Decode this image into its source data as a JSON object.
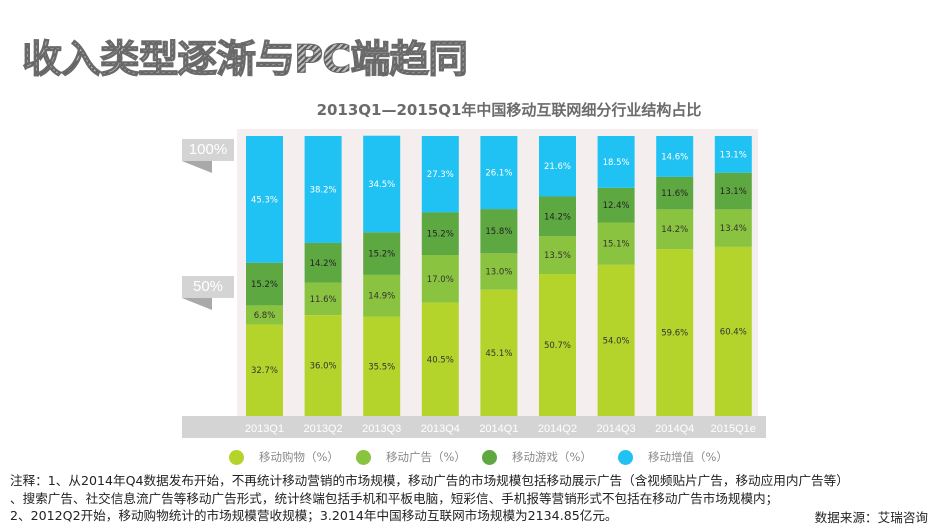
{
  "slide": {
    "title": "收入类型逐渐与PC端趋同"
  },
  "y_labels": [
    "100%",
    "50%"
  ],
  "legend": [
    {
      "label": "移动购物（%）",
      "color": "#b5d42b"
    },
    {
      "label": "移动广告（%）",
      "color": "#8ac33f"
    },
    {
      "label": "移动游戏（%）",
      "color": "#5ea842"
    },
    {
      "label": "移动增值（%）",
      "color": "#1fc2f2"
    }
  ],
  "notes": {
    "line1": "注释：1、从2014年Q4数据发布开始，不再统计移动营销的市场规模，移动广告的市场规模包括移动展示广告（含视频贴片广告，移动应用内广告等）",
    "line2": "、搜索广告、社交信息流广告等移动广告形式，统计终端包括手机和平板电脑，短彩信、手机报等营销形式不包括在移动广告市场规模内；",
    "line3": "2、2012Q2开始，移动购物统计的市场规模营收规模；3.2014年中国移动互联网市场规模为2134.85亿元。",
    "source": "数据来源：艾瑞咨询"
  },
  "chart_data": {
    "type": "bar",
    "stacked": true,
    "title": "2013Q1—2015Q1年中国移动互联网细分行业结构占比",
    "xlabel": "",
    "ylabel": "",
    "ylim": [
      0,
      100
    ],
    "y_ticks": [
      "50%",
      "100%"
    ],
    "legend_position": "bottom",
    "categories": [
      "2013Q1",
      "2013Q2",
      "2013Q3",
      "2013Q4",
      "2014Q1",
      "2014Q2",
      "2014Q3",
      "2014Q4",
      "2015Q1e"
    ],
    "series": [
      {
        "name": "移动购物（%）",
        "color": "#b5d42b",
        "label_color": "#333333",
        "values": [
          32.7,
          36.0,
          35.5,
          40.5,
          45.1,
          50.7,
          54.0,
          59.6,
          60.4
        ]
      },
      {
        "name": "移动广告（%）",
        "color": "#8ac33f",
        "label_color": "#333333",
        "values": [
          6.8,
          11.6,
          14.9,
          17.0,
          13.0,
          13.5,
          15.1,
          14.2,
          13.4
        ]
      },
      {
        "name": "移动游戏（%）",
        "color": "#5ea842",
        "label_color": "#222222",
        "values": [
          15.2,
          14.2,
          15.2,
          15.2,
          15.8,
          14.2,
          12.4,
          11.6,
          13.1
        ]
      },
      {
        "name": "移动增值（%）",
        "color": "#1fc2f2",
        "label_color": "#ffffff",
        "values": [
          45.3,
          38.2,
          34.5,
          27.3,
          26.1,
          21.6,
          18.5,
          14.6,
          13.1
        ]
      }
    ]
  }
}
